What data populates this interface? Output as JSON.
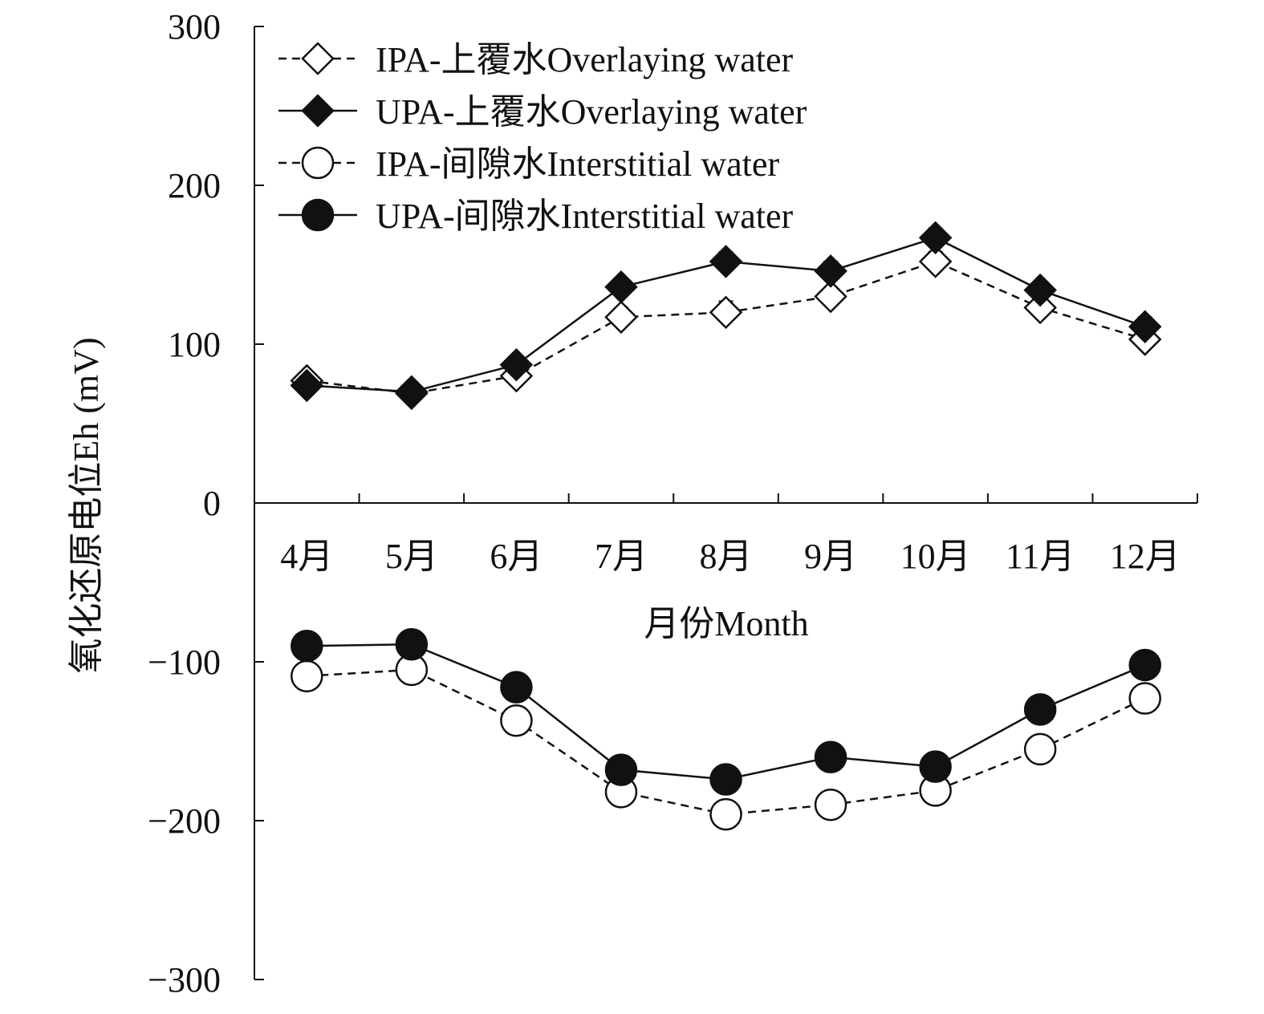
{
  "chart_data": {
    "type": "line",
    "title": "",
    "xlabel": "月份Month",
    "ylabel": "氧化还原电位Eh (mV)",
    "ylim": [
      -300,
      300
    ],
    "yticks": [
      -300,
      -200,
      -100,
      0,
      100,
      200,
      300
    ],
    "ytick_labels": [
      "−300",
      "−200",
      "−100",
      "0",
      "100",
      "200",
      "300"
    ],
    "categories": [
      "4月",
      "5月",
      "6月",
      "7月",
      "8月",
      "9月",
      "10月",
      "11月",
      "12月"
    ],
    "grid": false,
    "legend_position": "top-left",
    "series": [
      {
        "name": "IPA-上覆水Overlaying water",
        "marker": "diamond-open",
        "line": "dashed",
        "values": [
          77,
          69,
          80,
          117,
          120,
          130,
          152,
          123,
          103
        ],
        "errors": [
          4,
          3,
          4,
          6,
          7,
          5,
          6,
          5,
          5
        ]
      },
      {
        "name": "UPA-上覆水Overlaying water",
        "marker": "diamond-filled",
        "line": "solid",
        "values": [
          74,
          70,
          87,
          136,
          152,
          146,
          167,
          134,
          111
        ],
        "errors": [
          3,
          3,
          4,
          5,
          6,
          6,
          6,
          5,
          6
        ]
      },
      {
        "name": "IPA-间隙水Interstitial water",
        "marker": "circle-open",
        "line": "dashed",
        "values": [
          -109,
          -105,
          -137,
          -182,
          -196,
          -190,
          -181,
          -155,
          -123
        ],
        "errors": [
          3,
          3,
          4,
          4,
          4,
          4,
          4,
          4,
          4
        ]
      },
      {
        "name": "UPA-间隙水Interstitial water",
        "marker": "circle-filled",
        "line": "solid",
        "values": [
          -90,
          -89,
          -116,
          -168,
          -174,
          -160,
          -166,
          -130,
          -102
        ],
        "errors": [
          3,
          3,
          3,
          5,
          6,
          6,
          5,
          3,
          3
        ]
      }
    ],
    "colors": {
      "line": "#111111",
      "marker_fill_open": "#ffffff",
      "marker_fill_filled": "#111111"
    }
  }
}
